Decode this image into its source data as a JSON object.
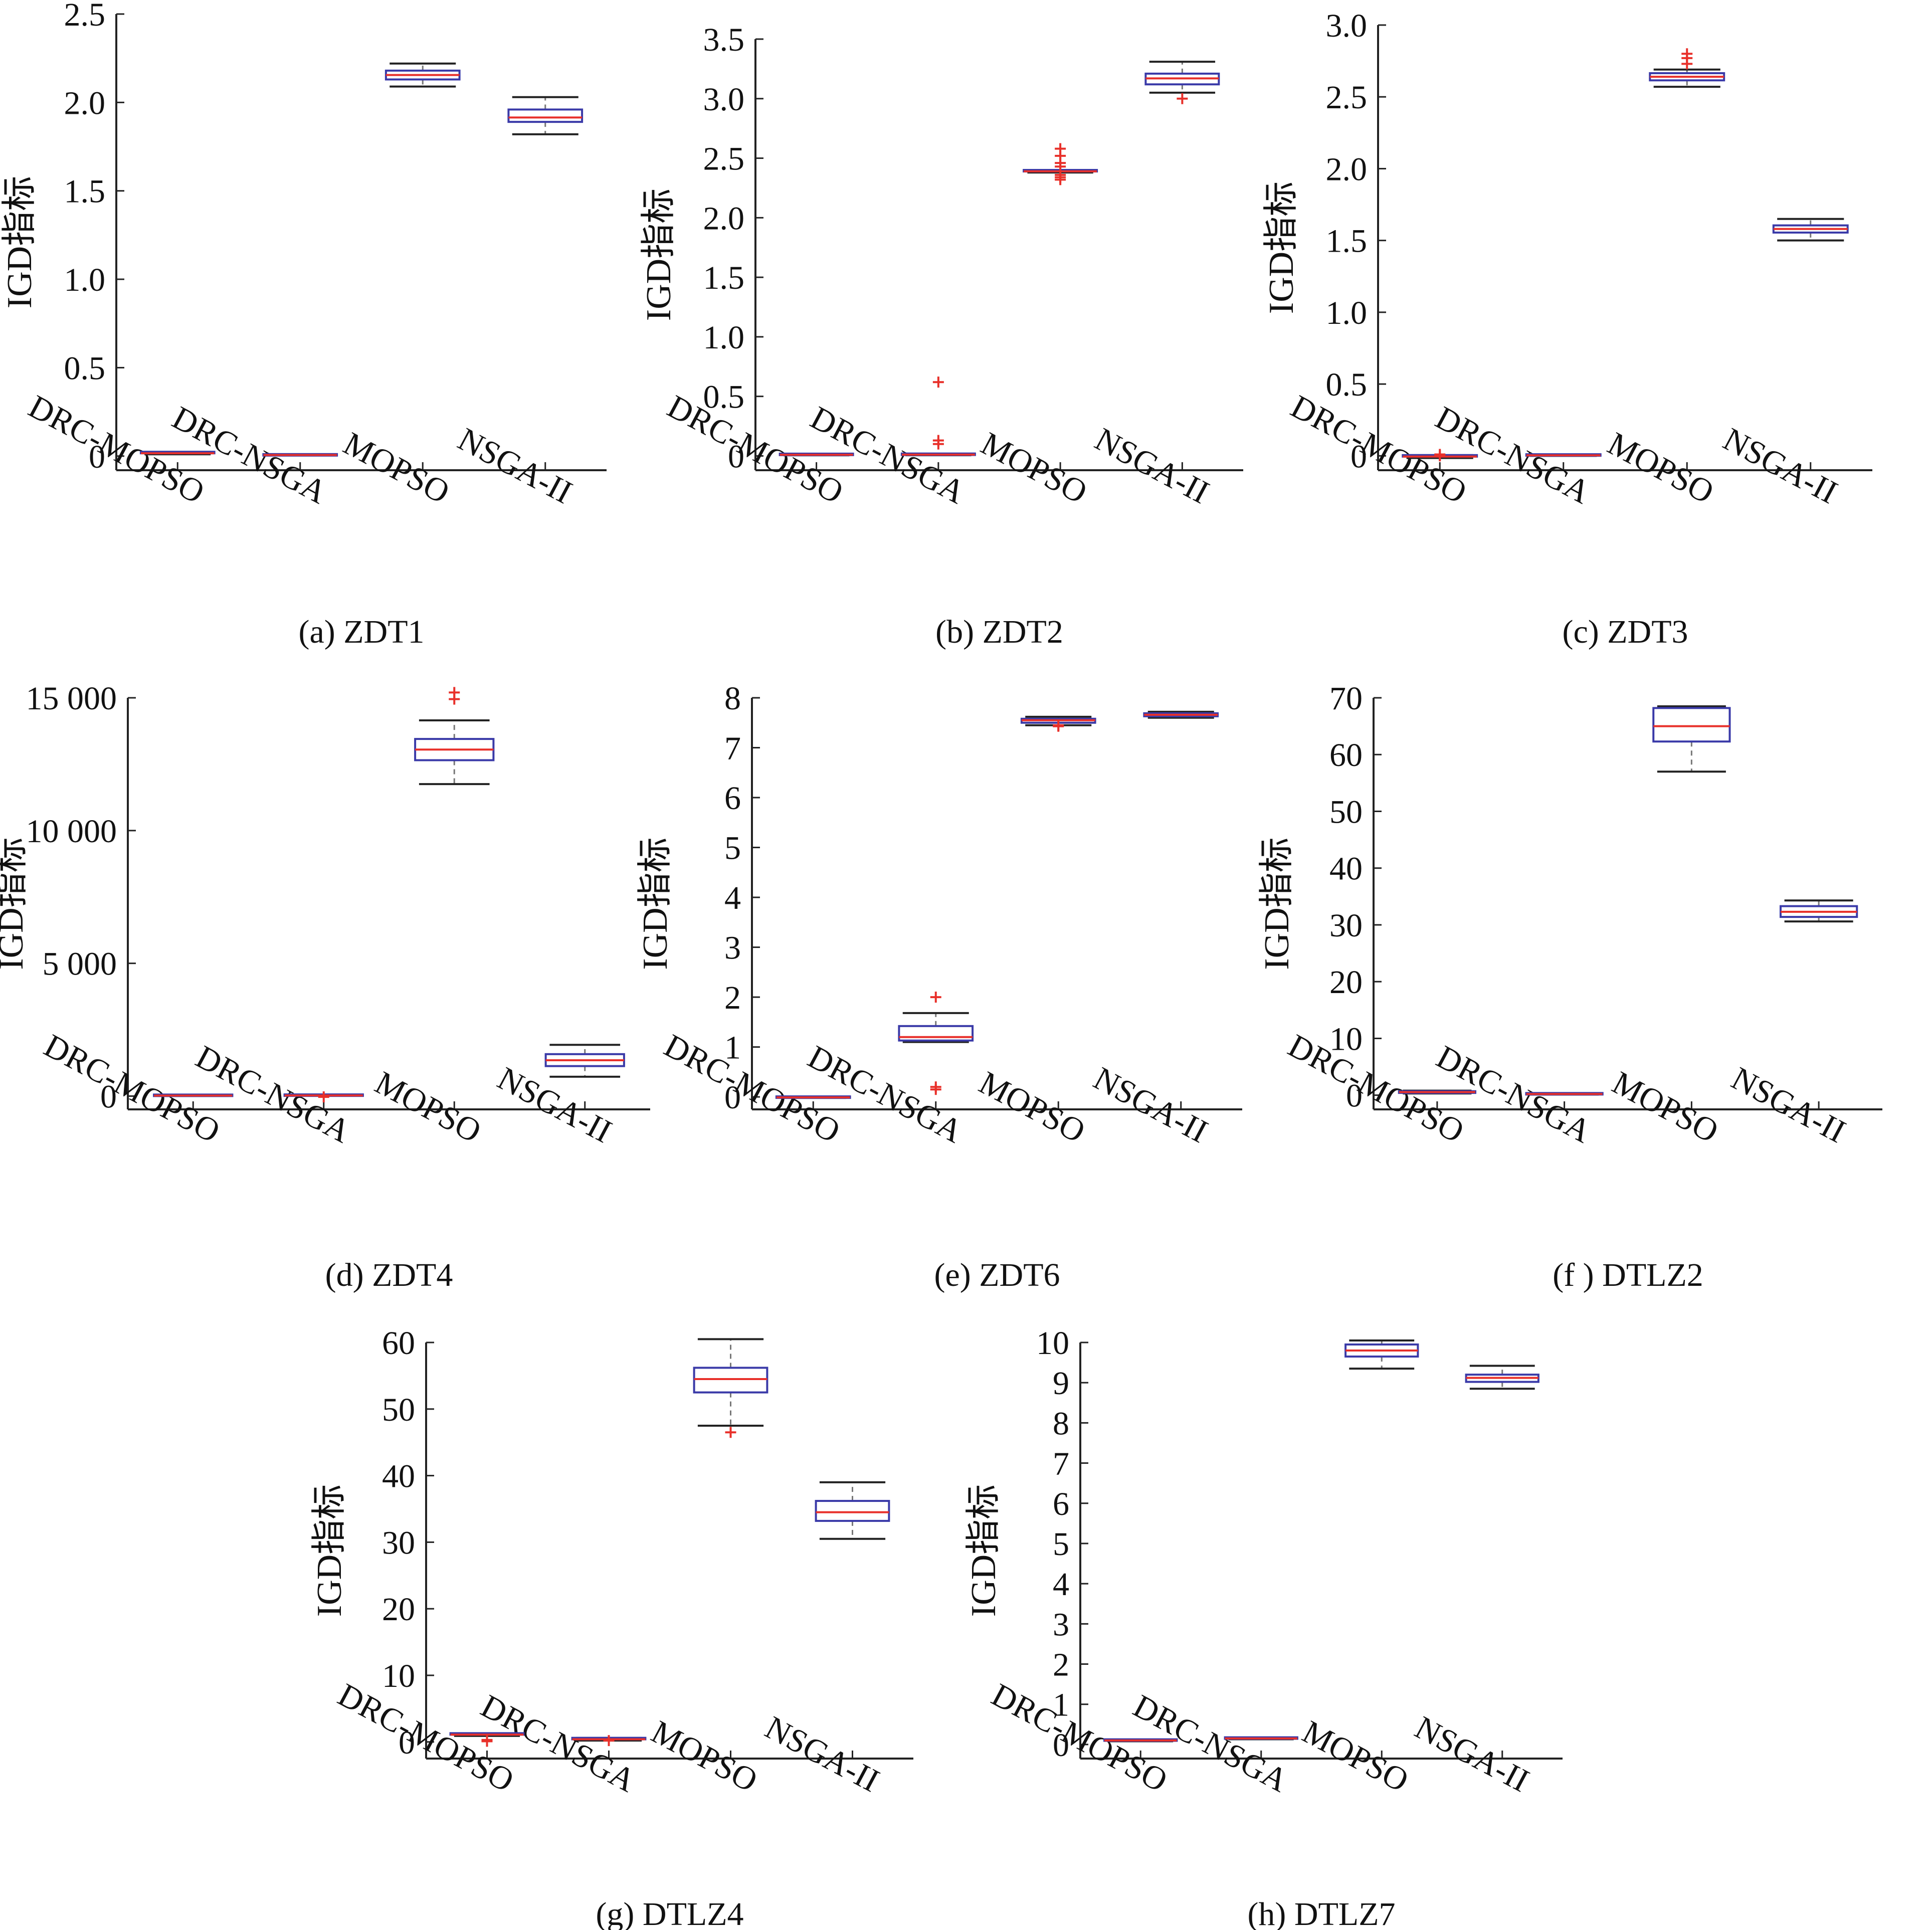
{
  "colors": {
    "box_edge": "#3a3aa8",
    "median": "#e8302a",
    "outlier": "#e8302a",
    "whisker": "#222222",
    "whisker_dash": "#777777",
    "axis": "#222222"
  },
  "chart_data": [
    {
      "type": "box",
      "caption": "(a) ZDT1",
      "ylabel": "IGD指标",
      "ylim": [
        -0.08,
        2.5
      ],
      "yticks": [
        0,
        0.5,
        1.0,
        1.5,
        2.0,
        2.5
      ],
      "ytick_labels": [
        "0",
        "0.5",
        "1.0",
        "1.5",
        "2.0",
        "2.5"
      ],
      "categories": [
        "DRC-MOPSO",
        "DRC-NSGA",
        "MOPSO",
        "NSGA-II"
      ],
      "boxes": [
        {
          "whislo": 0.01,
          "q1": 0.012,
          "med": 0.016,
          "q3": 0.02,
          "whishi": 0.024,
          "fliers": []
        },
        {
          "whislo": 0.004,
          "q1": 0.005,
          "med": 0.006,
          "q3": 0.007,
          "whishi": 0.008,
          "fliers": []
        },
        {
          "whislo": 2.09,
          "q1": 2.13,
          "med": 2.155,
          "q3": 2.18,
          "whishi": 2.22,
          "fliers": []
        },
        {
          "whislo": 1.82,
          "q1": 1.89,
          "med": 1.915,
          "q3": 1.96,
          "whishi": 2.03,
          "fliers": []
        }
      ]
    },
    {
      "type": "box",
      "caption": "(b) ZDT2",
      "ylabel": "IGD指标",
      "ylim": [
        -0.12,
        3.5
      ],
      "yticks": [
        0,
        0.5,
        1.0,
        1.5,
        2.0,
        2.5,
        3.0,
        3.5
      ],
      "ytick_labels": [
        "0",
        "0.5",
        "1.0",
        "1.5",
        "2.0",
        "2.5",
        "3.0",
        "3.5"
      ],
      "categories": [
        "DRC-MOPSO",
        "DRC-NSGA",
        "MOPSO",
        "NSGA-II"
      ],
      "boxes": [
        {
          "whislo": 0.005,
          "q1": 0.008,
          "med": 0.01,
          "q3": 0.013,
          "whishi": 0.016,
          "fliers": []
        },
        {
          "whislo": 0.006,
          "q1": 0.008,
          "med": 0.011,
          "q3": 0.014,
          "whishi": 0.018,
          "fliers": [
            0.62,
            0.13,
            0.1
          ]
        },
        {
          "whislo": 2.38,
          "q1": 2.385,
          "med": 2.39,
          "q3": 2.395,
          "whishi": 2.4,
          "fliers": [
            2.58,
            2.52,
            2.46,
            2.43,
            2.36,
            2.34,
            2.32
          ]
        },
        {
          "whislo": 3.05,
          "q1": 3.12,
          "med": 3.17,
          "q3": 3.21,
          "whishi": 3.31,
          "fliers": [
            3.0
          ]
        }
      ]
    },
    {
      "type": "box",
      "caption": "(c) ZDT3",
      "ylabel": "IGD指标",
      "ylim": [
        -0.1,
        3.0
      ],
      "yticks": [
        0,
        0.5,
        1.0,
        1.5,
        2.0,
        2.5,
        3.0
      ],
      "ytick_labels": [
        "0",
        "0.5",
        "1.0",
        "1.5",
        "2.0",
        "2.5",
        "3.0"
      ],
      "categories": [
        "DRC-MOPSO",
        "DRC-NSGA",
        "MOPSO",
        "NSGA-II"
      ],
      "boxes": [
        {
          "whislo": -0.015,
          "q1": -0.01,
          "med": -0.005,
          "q3": 0.0,
          "whishi": 0.005,
          "fliers": [
            0.01,
            0.0
          ]
        },
        {
          "whislo": 0.0,
          "q1": 0.002,
          "med": 0.004,
          "q3": 0.006,
          "whishi": 0.008,
          "fliers": []
        },
        {
          "whislo": 2.57,
          "q1": 2.615,
          "med": 2.64,
          "q3": 2.665,
          "whishi": 2.69,
          "fliers": [
            2.8,
            2.77,
            2.73
          ]
        },
        {
          "whislo": 1.5,
          "q1": 1.555,
          "med": 1.58,
          "q3": 1.605,
          "whishi": 1.65,
          "fliers": []
        }
      ]
    },
    {
      "type": "box",
      "caption": "(d) ZDT4",
      "ylabel": "IGD指标",
      "ylim": [
        -500,
        15000
      ],
      "yticks": [
        0,
        5000,
        10000,
        15000
      ],
      "ytick_labels": [
        "0",
        "5 000",
        "10 000",
        "15 000"
      ],
      "categories": [
        "DRC-MOPSO",
        "DRC-NSGA",
        "MOPSO",
        "NSGA-II"
      ],
      "boxes": [
        {
          "whislo": 5,
          "q1": 10,
          "med": 20,
          "q3": 30,
          "whishi": 40,
          "fliers": []
        },
        {
          "whislo": 10,
          "q1": 15,
          "med": 25,
          "q3": 35,
          "whishi": 45,
          "fliers": [
            -30
          ]
        },
        {
          "whislo": 11750,
          "q1": 12650,
          "med": 13050,
          "q3": 13450,
          "whishi": 14150,
          "fliers": [
            15200,
            14950
          ]
        },
        {
          "whislo": 730,
          "q1": 1130,
          "med": 1350,
          "q3": 1580,
          "whishi": 1930,
          "fliers": []
        }
      ]
    },
    {
      "type": "box",
      "caption": "(e) ZDT6",
      "ylabel": "IGD指标",
      "ylim": [
        -0.25,
        8
      ],
      "yticks": [
        0,
        1,
        2,
        3,
        4,
        5,
        6,
        7,
        8
      ],
      "ytick_labels": [
        "0",
        "1",
        "2",
        "3",
        "4",
        "5",
        "6",
        "7",
        "8"
      ],
      "categories": [
        "DRC-MOPSO",
        "DRC-NSGA",
        "MOPSO",
        "NSGA-II"
      ],
      "boxes": [
        {
          "whislo": -0.02,
          "q1": -0.015,
          "med": -0.01,
          "q3": -0.005,
          "whishi": 0.0,
          "fliers": []
        },
        {
          "whislo": 1.1,
          "q1": 1.13,
          "med": 1.2,
          "q3": 1.42,
          "whishi": 1.68,
          "fliers": [
            2.0,
            0.2,
            0.15
          ]
        },
        {
          "whislo": 7.45,
          "q1": 7.5,
          "med": 7.55,
          "q3": 7.58,
          "whishi": 7.62,
          "fliers": [
            7.43,
            7.45
          ]
        },
        {
          "whislo": 7.6,
          "q1": 7.63,
          "med": 7.66,
          "q3": 7.69,
          "whishi": 7.72,
          "fliers": []
        }
      ]
    },
    {
      "type": "box",
      "caption": "(f ) DTLZ2",
      "ylabel": "IGD指标",
      "ylim": [
        -2.5,
        70
      ],
      "yticks": [
        0,
        10,
        20,
        30,
        40,
        50,
        60,
        70
      ],
      "ytick_labels": [
        "0",
        "10",
        "20",
        "30",
        "40",
        "50",
        "60",
        "70"
      ],
      "categories": [
        "DRC-MOPSO",
        "DRC-NSGA",
        "MOPSO",
        "NSGA-II"
      ],
      "boxes": [
        {
          "whislo": 0.3,
          "q1": 0.4,
          "med": 0.55,
          "q3": 0.7,
          "whishi": 0.8,
          "fliers": []
        },
        {
          "whislo": 0.1,
          "q1": 0.15,
          "med": 0.2,
          "q3": 0.25,
          "whishi": 0.3,
          "fliers": []
        },
        {
          "whislo": 57,
          "q1": 62.3,
          "med": 65,
          "q3": 68.2,
          "whishi": 68.5,
          "fliers": []
        },
        {
          "whislo": 30.6,
          "q1": 31.4,
          "med": 32.3,
          "q3": 33.3,
          "whishi": 34.3,
          "fliers": []
        }
      ]
    },
    {
      "type": "box",
      "caption": "(g) DTLZ4",
      "ylabel": "IGD指标",
      "ylim": [
        -2.5,
        60
      ],
      "yticks": [
        0,
        10,
        20,
        30,
        40,
        50,
        60
      ],
      "ytick_labels": [
        "0",
        "10",
        "20",
        "30",
        "40",
        "50",
        "60"
      ],
      "categories": [
        "DRC-MOPSO",
        "DRC-NSGA",
        "MOPSO",
        "NSGA-II"
      ],
      "boxes": [
        {
          "whislo": 0.9,
          "q1": 1.0,
          "med": 1.1,
          "q3": 1.2,
          "whishi": 1.3,
          "fliers": [
            0.3,
            0.1
          ]
        },
        {
          "whislo": 0.2,
          "q1": 0.3,
          "med": 0.4,
          "q3": 0.5,
          "whishi": 0.6,
          "fliers": [
            0.2
          ]
        },
        {
          "whislo": 47.5,
          "q1": 52.5,
          "med": 54.5,
          "q3": 56.2,
          "whishi": 60.5,
          "fliers": [
            46.5
          ]
        },
        {
          "whislo": 30.5,
          "q1": 33.2,
          "med": 34.5,
          "q3": 36.2,
          "whishi": 39.0,
          "fliers": []
        }
      ]
    },
    {
      "type": "box",
      "caption": "(h) DTLZ7",
      "ylabel": "IGD指标",
      "ylim": [
        -0.35,
        10
      ],
      "yticks": [
        0,
        1,
        2,
        3,
        4,
        5,
        6,
        7,
        8,
        9,
        10
      ],
      "ytick_labels": [
        "0",
        "1",
        "2",
        "3",
        "4",
        "5",
        "6",
        "7",
        "8",
        "9",
        "10"
      ],
      "categories": [
        "DRC-MOPSO",
        "DRC-NSGA",
        "MOPSO",
        "NSGA-II"
      ],
      "boxes": [
        {
          "whislo": 0.08,
          "q1": 0.09,
          "med": 0.1,
          "q3": 0.11,
          "whishi": 0.12,
          "fliers": []
        },
        {
          "whislo": 0.13,
          "q1": 0.14,
          "med": 0.15,
          "q3": 0.16,
          "whishi": 0.17,
          "fliers": []
        },
        {
          "whislo": 9.35,
          "q1": 9.65,
          "med": 9.8,
          "q3": 9.95,
          "whishi": 10.05,
          "fliers": []
        },
        {
          "whislo": 8.85,
          "q1": 9.02,
          "med": 9.12,
          "q3": 9.2,
          "whishi": 9.42,
          "fliers": []
        }
      ]
    }
  ]
}
